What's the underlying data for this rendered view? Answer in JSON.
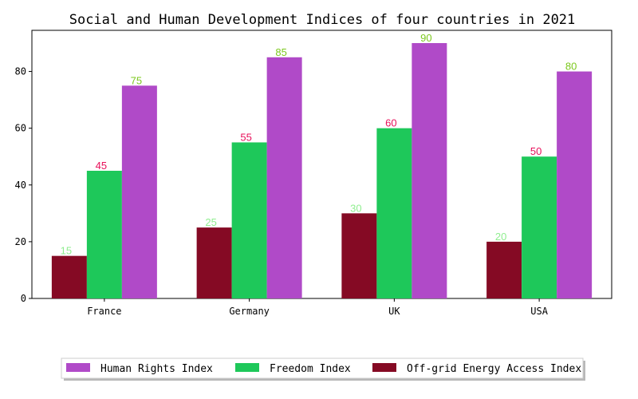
{
  "chart_data": {
    "type": "bar",
    "title": "Social and Human Development Indices of four countries in 2021",
    "xlabel": "",
    "ylabel": "",
    "categories": [
      "France",
      "Germany",
      "UK",
      "USA"
    ],
    "ylim": [
      0,
      94.5
    ],
    "yticks": [
      0,
      20,
      40,
      60,
      80
    ],
    "grid": false,
    "legend_position": "bottom-center",
    "series": [
      {
        "name": "Off-grid Energy Access Index",
        "color": "#850a24",
        "label_color": "#90ee90",
        "values": [
          15,
          25,
          30,
          20
        ]
      },
      {
        "name": "Freedom Index",
        "color": "#1ec85a",
        "label_color": "#e8105a",
        "values": [
          45,
          55,
          60,
          50
        ]
      },
      {
        "name": "Human Rights Index",
        "color": "#b04ac8",
        "label_color": "#7cc81e",
        "values": [
          75,
          85,
          90,
          80
        ]
      }
    ],
    "legend_order": [
      "Human Rights Index",
      "Freedom Index",
      "Off-grid Energy Access Index"
    ]
  }
}
